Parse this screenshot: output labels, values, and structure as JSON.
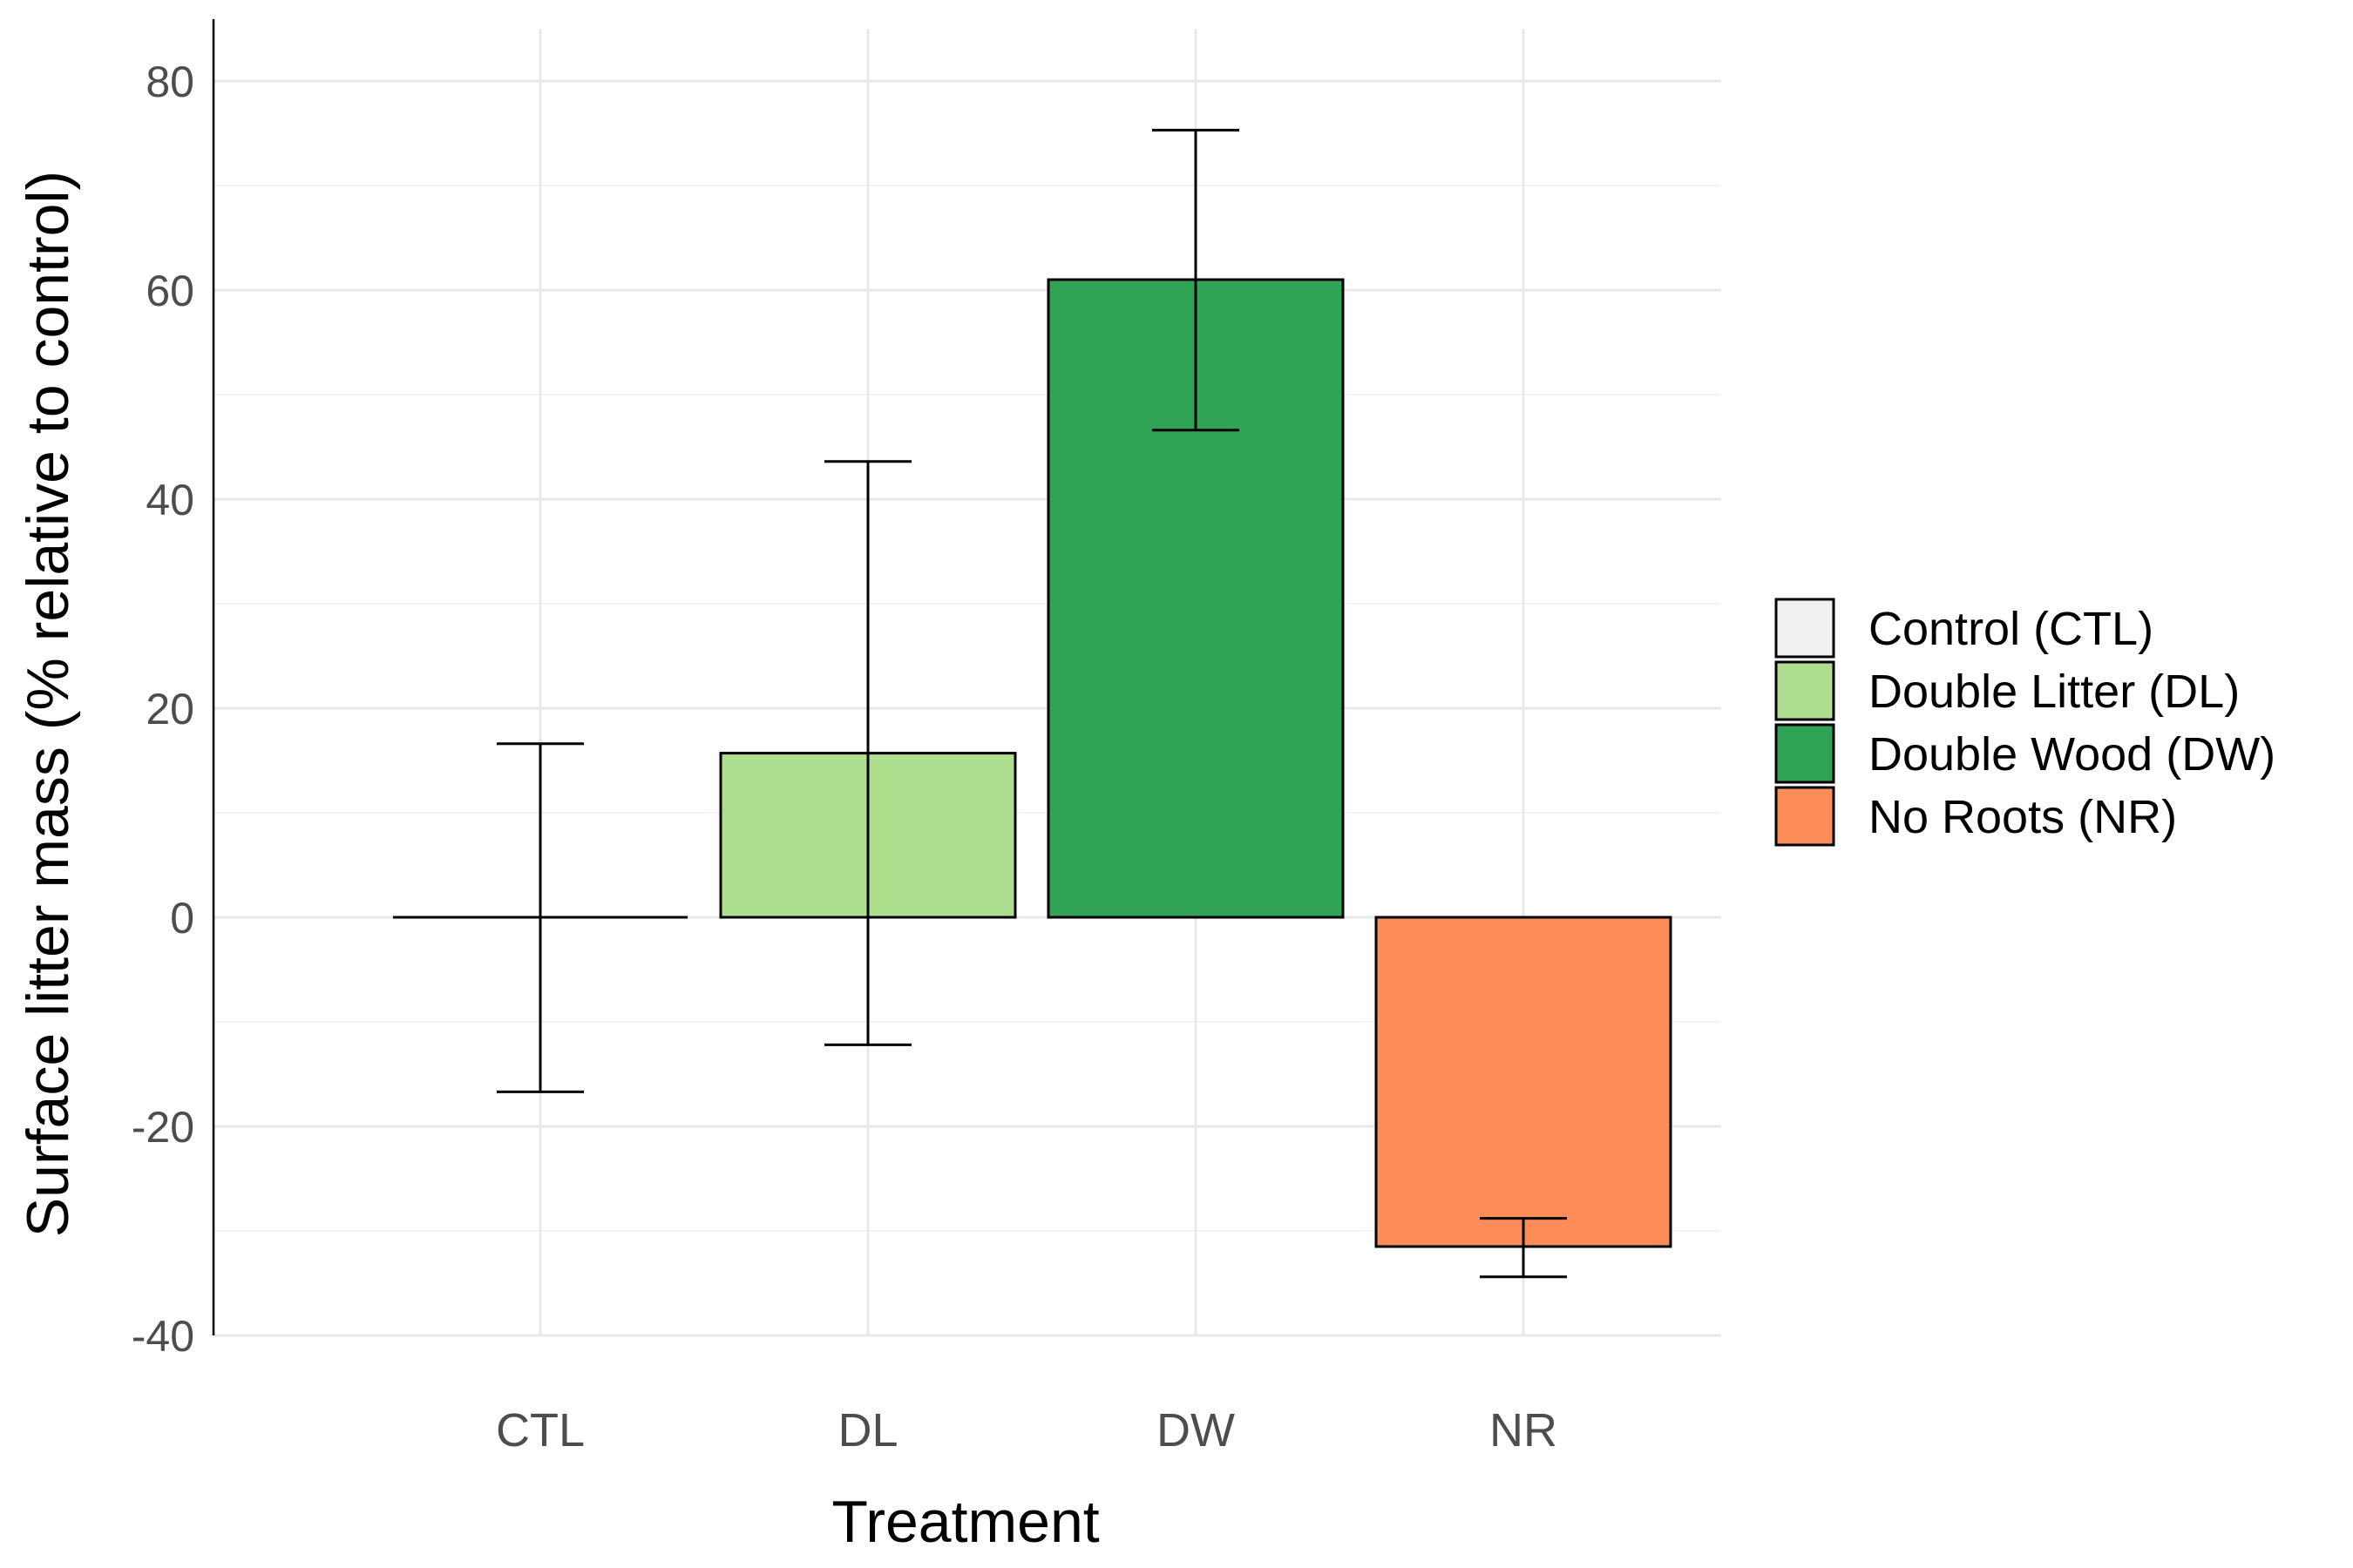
{
  "chart_data": {
    "type": "bar",
    "title": "",
    "xlabel": "Treatment",
    "ylabel": "Surface litter mass (% relative to control)",
    "categories": [
      "CTL",
      "DL",
      "DW",
      "NR"
    ],
    "values": [
      0,
      15.7,
      61.0,
      -31.5
    ],
    "error_low": [
      -16.7,
      -12.2,
      46.6,
      -34.4
    ],
    "error_high": [
      16.6,
      43.6,
      75.3,
      -28.8
    ],
    "colors": [
      "#f0f0f0",
      "#addf8e",
      "#31a354",
      "#fc8d59"
    ],
    "ylim": [
      -40,
      85
    ],
    "yticks": [
      -40,
      -20,
      0,
      20,
      40,
      60,
      80
    ],
    "ytick_labels": [
      "-40",
      "-20",
      "0",
      "20",
      "40",
      "60",
      "80"
    ],
    "grid": true,
    "legend": {
      "position": "right",
      "entries": [
        "Control (CTL)",
        "Double Litter (DL)",
        "Double Wood (DW)",
        "No Roots (NR)"
      ]
    }
  }
}
